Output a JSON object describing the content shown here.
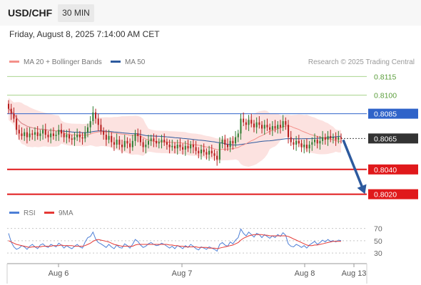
{
  "header": {
    "symbol": "USD/CHF",
    "timeframe": "30 MIN"
  },
  "datetime": "Friday, August 8, 2025 7:14:00 AM CET",
  "legend": [
    {
      "label": "MA 20 + Bollinger Bands",
      "color": "#f4908a"
    },
    {
      "label": "MA 50",
      "color": "#2d5a9e"
    }
  ],
  "credit": "Research © 2025 Trading Central",
  "rsi_legend": [
    {
      "label": "RSI",
      "color": "#4d7fd6"
    },
    {
      "label": "9MA",
      "color": "#e53935"
    }
  ],
  "colors": {
    "candle_up": "#2e7d32",
    "candle_down": "#b71c1c",
    "bb_fill": "#fbd8d6",
    "ma20": "#f4908a",
    "ma50": "#2d5a9e",
    "level_green": "#a9d58e",
    "level_blue": "#2f63c9",
    "level_red": "#e0191b",
    "arrow": "#2d5a9e"
  },
  "chart_data": [
    {
      "type": "candlestick",
      "x_ticks": [
        "Aug 6",
        "Aug 7",
        "Aug 8",
        "Aug 13"
      ],
      "y_range": [
        0.8014,
        0.8121
      ],
      "levels": [
        {
          "value": 0.8115,
          "label": "0.8115",
          "style": "resistance-green"
        },
        {
          "value": 0.81,
          "label": "0.8100",
          "style": "resistance-green"
        },
        {
          "value": 0.8085,
          "label": "0.8085",
          "style": "pivot-blue"
        },
        {
          "value": 0.8065,
          "label": "0.8065",
          "style": "last-price"
        },
        {
          "value": 0.804,
          "label": "0.8040",
          "style": "support-red"
        },
        {
          "value": 0.802,
          "label": "0.8020",
          "style": "support-red"
        }
      ],
      "closes": [
        0.8089,
        0.8085,
        0.8081,
        0.8072,
        0.8069,
        0.8067,
        0.807,
        0.8066,
        0.8069,
        0.8068,
        0.807,
        0.8067,
        0.8069,
        0.8072,
        0.8068,
        0.8066,
        0.8069,
        0.8067,
        0.8068,
        0.8072,
        0.8069,
        0.8066,
        0.8068,
        0.8065,
        0.8064,
        0.8066,
        0.8068,
        0.8066,
        0.8065,
        0.807,
        0.8074,
        0.8079,
        0.8086,
        0.8081,
        0.8076,
        0.8071,
        0.8068,
        0.8064,
        0.8067,
        0.8062,
        0.806,
        0.8064,
        0.806,
        0.8058,
        0.8063,
        0.8061,
        0.8058,
        0.8063,
        0.8069,
        0.8067,
        0.8062,
        0.8058,
        0.806,
        0.8063,
        0.8065,
        0.8063,
        0.8061,
        0.8062,
        0.8064,
        0.8062,
        0.806,
        0.8058,
        0.8059,
        0.8057,
        0.806,
        0.8058,
        0.8056,
        0.8059,
        0.8057,
        0.806,
        0.8058,
        0.8055,
        0.8053,
        0.8056,
        0.8054,
        0.8052,
        0.8055,
        0.8053,
        0.8051,
        0.8048,
        0.8061,
        0.8064,
        0.806,
        0.8058,
        0.8063,
        0.8061,
        0.8066,
        0.8069,
        0.8081,
        0.8078,
        0.8076,
        0.808,
        0.8077,
        0.8074,
        0.8078,
        0.8076,
        0.8073,
        0.8076,
        0.8074,
        0.8072,
        0.8075,
        0.8073,
        0.8076,
        0.8074,
        0.8079,
        0.8076,
        0.8066,
        0.8062,
        0.806,
        0.8063,
        0.8061,
        0.8058,
        0.806,
        0.8057,
        0.806,
        0.8062,
        0.8064,
        0.8061,
        0.8063,
        0.8066,
        0.8064,
        0.8067,
        0.8065,
        0.8066,
        0.8064,
        0.8066,
        0.8065
      ],
      "ma20_visible": true,
      "ma50_visible": true,
      "bollinger_bands_visible": true,
      "forecast_arrow": {
        "from": 0.8065,
        "to": 0.802
      }
    },
    {
      "type": "line",
      "name": "RSI",
      "y_ticks": [
        70,
        50,
        30
      ],
      "y_range": [
        15,
        80
      ],
      "series": [
        {
          "name": "RSI",
          "values": [
            62,
            48,
            40,
            36,
            38,
            42,
            40,
            36,
            41,
            44,
            40,
            37,
            43,
            45,
            41,
            39,
            44,
            42,
            40,
            46,
            43,
            38,
            42,
            39,
            37,
            41,
            44,
            40,
            38,
            48,
            55,
            57,
            64,
            53,
            47,
            45,
            42,
            39,
            44,
            40,
            37,
            43,
            39,
            38,
            45,
            42,
            38,
            44,
            52,
            49,
            43,
            39,
            41,
            45,
            47,
            44,
            42,
            43,
            46,
            44,
            41,
            38,
            41,
            37,
            42,
            40,
            37,
            42,
            39,
            44,
            41,
            37,
            35,
            40,
            38,
            36,
            40,
            38,
            36,
            33,
            44,
            47,
            43,
            41,
            48,
            45,
            51,
            55,
            69,
            62,
            58,
            64,
            60,
            56,
            62,
            60,
            55,
            60,
            57,
            54,
            58,
            55,
            60,
            57,
            63,
            59,
            45,
            41,
            40,
            44,
            42,
            39,
            42,
            38,
            43,
            46,
            49,
            44,
            47,
            51,
            48,
            52,
            49,
            50,
            48,
            51,
            50
          ]
        },
        {
          "name": "9MA",
          "values": [
            50,
            48,
            46,
            44,
            43,
            42,
            41,
            40,
            39,
            40,
            40,
            40,
            40,
            41,
            41,
            41,
            41,
            42,
            42,
            42,
            43,
            42,
            42,
            42,
            42,
            41,
            41,
            41,
            41,
            42,
            44,
            46,
            49,
            51,
            52,
            51,
            50,
            49,
            48,
            46,
            44,
            43,
            42,
            41,
            41,
            41,
            41,
            41,
            43,
            44,
            44,
            44,
            44,
            44,
            44,
            44,
            44,
            44,
            44,
            44,
            44,
            43,
            43,
            42,
            42,
            41,
            41,
            40,
            40,
            40,
            40,
            40,
            39,
            39,
            39,
            39,
            38,
            38,
            38,
            37,
            38,
            39,
            40,
            41,
            42,
            43,
            45,
            47,
            51,
            54,
            56,
            58,
            59,
            60,
            60,
            60,
            60,
            59,
            59,
            58,
            58,
            58,
            58,
            58,
            58,
            58,
            57,
            55,
            53,
            51,
            49,
            47,
            45,
            43,
            42,
            42,
            43,
            43,
            44,
            45,
            46,
            47,
            48,
            49,
            49,
            49,
            49
          ]
        }
      ]
    }
  ]
}
